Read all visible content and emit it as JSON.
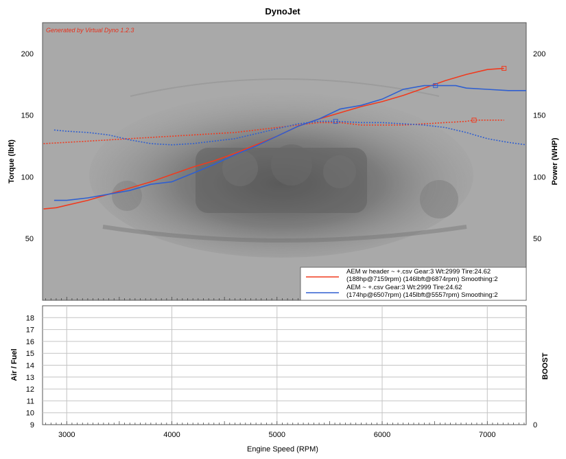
{
  "title": "DynoJet",
  "watermark": "Generated by Virtual Dyno 1.2.3",
  "colors": {
    "run1": "#f03a1e",
    "run2": "#2f5fd0",
    "plot_bg": "#a9a9a9",
    "lower_bg": "#ffffff",
    "grid": "#bdbdbd",
    "watermark": "#e8301a"
  },
  "chart_data": [
    {
      "type": "line",
      "name": "torque-power",
      "xlabel": "Engine Speed (RPM)",
      "ylabel_left": "Torque (lbft)",
      "ylabel_right": "Power (WHP)",
      "xlim": [
        2770,
        7370
      ],
      "ylim": [
        0,
        225
      ],
      "y_ticks": [
        50,
        100,
        150,
        200
      ],
      "grid": false,
      "legend_position": "bottom-right",
      "legend": [
        {
          "lines": [
            "AEM w header ~ +.csv Gear:3 Wt:2999 Tire:24.62",
            "(188hp@7159rpm) (146lbft@6874rpm) Smoothing:2"
          ],
          "color": "#f03a1e"
        },
        {
          "lines": [
            "AEM ~ +.csv Gear:3 Wt:2999 Tire:24.62",
            "(174hp@6507rpm) (145lbft@5557rpm) Smoothing:2"
          ],
          "color": "#2f5fd0"
        }
      ],
      "series": [
        {
          "kind": "power",
          "color": "#f03a1e",
          "dash": false,
          "x": [
            2780,
            2900,
            3000,
            3200,
            3400,
            3600,
            3800,
            4000,
            4200,
            4400,
            4600,
            4800,
            5000,
            5200,
            5400,
            5600,
            5800,
            6000,
            6200,
            6400,
            6600,
            6800,
            7000,
            7159
          ],
          "y": [
            74,
            75,
            77,
            81,
            86,
            91,
            96,
            102,
            108,
            113,
            119,
            126,
            133,
            141,
            147,
            152,
            157,
            161,
            166,
            172,
            178,
            183,
            187,
            188
          ],
          "peak": {
            "x": 7159,
            "y": 188
          }
        },
        {
          "kind": "torque",
          "color": "#f03a1e",
          "dash": true,
          "x": [
            2780,
            3000,
            3200,
            3400,
            3600,
            3800,
            4000,
            4200,
            4400,
            4600,
            4800,
            5000,
            5200,
            5400,
            5600,
            5800,
            6000,
            6200,
            6400,
            6600,
            6800,
            6874,
            7000,
            7159
          ],
          "y": [
            127,
            128,
            129,
            130,
            131,
            132,
            133,
            134,
            135,
            136,
            138,
            140,
            142,
            144,
            144,
            142,
            142,
            142,
            143,
            144,
            145,
            146,
            146,
            146
          ],
          "peak": {
            "x": 6874,
            "y": 146
          }
        },
        {
          "kind": "power",
          "color": "#2f5fd0",
          "dash": false,
          "x": [
            2880,
            3000,
            3200,
            3400,
            3600,
            3800,
            4000,
            4200,
            4400,
            4600,
            4800,
            5000,
            5200,
            5400,
            5600,
            5800,
            6000,
            6200,
            6400,
            6507,
            6700,
            6800,
            7000,
            7200,
            7370
          ],
          "y": [
            81,
            81,
            83,
            86,
            89,
            94,
            96,
            103,
            110,
            118,
            125,
            133,
            141,
            147,
            155,
            158,
            163,
            171,
            174,
            174,
            174,
            172,
            171,
            170,
            170
          ],
          "peak": {
            "x": 6507,
            "y": 174
          }
        },
        {
          "kind": "torque",
          "color": "#2f5fd0",
          "dash": true,
          "x": [
            2880,
            3000,
            3200,
            3400,
            3600,
            3800,
            4000,
            4200,
            4400,
            4600,
            4800,
            5000,
            5200,
            5400,
            5557,
            5800,
            6000,
            6200,
            6400,
            6600,
            6800,
            7000,
            7200,
            7370
          ],
          "y": [
            138,
            137,
            136,
            134,
            130,
            127,
            126,
            127,
            129,
            131,
            135,
            139,
            143,
            145,
            145,
            144,
            144,
            143,
            142,
            140,
            136,
            131,
            128,
            126
          ],
          "peak": {
            "x": 5557,
            "y": 145
          }
        }
      ]
    },
    {
      "type": "line",
      "name": "air-fuel-boost",
      "xlabel": "Engine Speed (RPM)",
      "ylabel_left": "Air / Fuel",
      "ylabel_right": "BOOST",
      "xlim": [
        2770,
        7370
      ],
      "ylim": [
        9,
        19
      ],
      "y_ticks": [
        9,
        10,
        11,
        12,
        13,
        14,
        15,
        16,
        17,
        18
      ],
      "x_ticks": [
        3000,
        4000,
        5000,
        6000,
        7000
      ],
      "right_ticks": [
        0
      ],
      "grid": true,
      "series": []
    }
  ]
}
